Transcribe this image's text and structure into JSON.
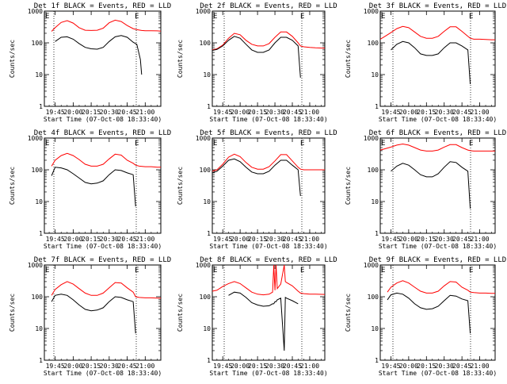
{
  "figure": {
    "start_label": "Start Time (07-Oct-08 18:33:40)",
    "ylabel": "Counts/sec",
    "x_ticks": [
      "19:45",
      "20:00",
      "20:15",
      "20:30",
      "20:45",
      "21:00"
    ],
    "y_ticks": [
      "1",
      "10",
      "100",
      "1000"
    ],
    "marker_left": "E",
    "marker_right": "E",
    "colors": {
      "events": "#000000",
      "lld": "#ff0000",
      "axes": "#000000",
      "background": "#ffffff"
    }
  },
  "chart_data": [
    {
      "type": "line",
      "title": "Det 1f BLACK = Events, RED = LLD",
      "xlim": [
        "19:36",
        "21:13"
      ],
      "ylim": [
        1,
        1000
      ],
      "yscale": "log",
      "x": [
        "19:42",
        "19:45",
        "19:50",
        "19:55",
        "20:00",
        "20:05",
        "20:10",
        "20:15",
        "20:20",
        "20:25",
        "20:30",
        "20:35",
        "20:40",
        "20:45",
        "20:50",
        "20:53",
        "20:56",
        "20:57",
        "21:00",
        "21:05",
        "21:10",
        "21:13"
      ],
      "series": [
        {
          "name": "Events",
          "values": [
            null,
            110,
            150,
            155,
            130,
            95,
            72,
            65,
            63,
            72,
            110,
            155,
            170,
            150,
            105,
            90,
            30,
            10,
            null,
            null,
            null,
            null
          ]
        },
        {
          "name": "LLD",
          "values": [
            230,
            300,
            440,
            500,
            420,
            300,
            250,
            245,
            250,
            290,
            430,
            520,
            470,
            350,
            280,
            260,
            250,
            245,
            240,
            240,
            238,
            235
          ]
        }
      ]
    },
    {
      "type": "line",
      "title": "Det 2f BLACK = Events, RED = LLD",
      "xlim": [
        "19:36",
        "21:13"
      ],
      "ylim": [
        1,
        1000
      ],
      "yscale": "log",
      "x": [
        "19:36",
        "19:40",
        "19:45",
        "19:50",
        "19:55",
        "20:00",
        "20:05",
        "20:10",
        "20:15",
        "20:20",
        "20:25",
        "20:30",
        "20:35",
        "20:40",
        "20:45",
        "20:50",
        "20:52",
        "20:55",
        "21:00",
        "21:05",
        "21:13"
      ],
      "series": [
        {
          "name": "Events",
          "values": [
            58,
            62,
            80,
            120,
            160,
            140,
            90,
            60,
            50,
            50,
            60,
            100,
            150,
            150,
            120,
            80,
            8,
            null,
            null,
            null,
            null
          ]
        },
        {
          "name": "LLD",
          "values": [
            60,
            65,
            85,
            140,
            200,
            180,
            120,
            90,
            80,
            80,
            95,
            150,
            220,
            220,
            160,
            100,
            80,
            75,
            72,
            70,
            68
          ]
        }
      ]
    },
    {
      "type": "line",
      "title": "Det 3f BLACK = Events, RED = LLD",
      "xlim": [
        "19:36",
        "21:13"
      ],
      "ylim": [
        1,
        1000
      ],
      "yscale": "log",
      "x": [
        "19:36",
        "19:40",
        "19:45",
        "19:50",
        "19:55",
        "20:00",
        "20:05",
        "20:10",
        "20:15",
        "20:20",
        "20:25",
        "20:30",
        "20:35",
        "20:40",
        "20:45",
        "20:50",
        "20:52",
        "20:55",
        "21:00",
        "21:05",
        "21:10",
        "21:13"
      ],
      "series": [
        {
          "name": "Events",
          "values": [
            null,
            null,
            60,
            90,
            110,
            100,
            70,
            45,
            40,
            40,
            45,
            70,
            100,
            100,
            80,
            60,
            5,
            null,
            null,
            null,
            null,
            null
          ]
        },
        {
          "name": "LLD",
          "values": [
            130,
            160,
            210,
            280,
            330,
            300,
            220,
            160,
            140,
            140,
            160,
            230,
            320,
            320,
            230,
            160,
            140,
            130,
            130,
            128,
            125,
            125
          ]
        }
      ]
    },
    {
      "type": "line",
      "title": "Det 4f BLACK = Events, RED = LLD",
      "xlim": [
        "19:36",
        "21:13"
      ],
      "ylim": [
        1,
        1000
      ],
      "yscale": "log",
      "x": [
        "19:42",
        "19:45",
        "19:50",
        "19:55",
        "20:00",
        "20:05",
        "20:10",
        "20:15",
        "20:20",
        "20:25",
        "20:30",
        "20:35",
        "20:40",
        "20:45",
        "20:50",
        "20:52",
        "20:55",
        "21:00",
        "21:05",
        "21:10",
        "21:13"
      ],
      "series": [
        {
          "name": "Events",
          "values": [
            65,
            120,
            115,
            100,
            75,
            55,
            40,
            36,
            38,
            45,
            70,
            100,
            95,
            80,
            70,
            7,
            null,
            null,
            null,
            null,
            null
          ]
        },
        {
          "name": "LLD",
          "values": [
            130,
            200,
            280,
            330,
            280,
            210,
            150,
            130,
            130,
            150,
            220,
            310,
            290,
            200,
            160,
            140,
            130,
            125,
            125,
            120,
            120
          ]
        }
      ]
    },
    {
      "type": "line",
      "title": "Det 5f BLACK = Events, RED = LLD",
      "xlim": [
        "19:36",
        "21:13"
      ],
      "ylim": [
        1,
        1000
      ],
      "yscale": "log",
      "x": [
        "19:36",
        "19:40",
        "19:45",
        "19:50",
        "19:55",
        "20:00",
        "20:05",
        "20:10",
        "20:15",
        "20:20",
        "20:25",
        "20:30",
        "20:35",
        "20:40",
        "20:45",
        "20:50",
        "20:52",
        "20:55",
        "21:00",
        "21:05",
        "21:13"
      ],
      "series": [
        {
          "name": "Events",
          "values": [
            80,
            90,
            130,
            200,
            220,
            180,
            120,
            85,
            75,
            75,
            90,
            140,
            200,
            200,
            140,
            100,
            15,
            null,
            null,
            null,
            null
          ]
        },
        {
          "name": "LLD",
          "values": [
            90,
            100,
            150,
            250,
            310,
            260,
            170,
            120,
            105,
            105,
            125,
            190,
            300,
            300,
            190,
            120,
            105,
            100,
            100,
            100,
            100
          ]
        }
      ]
    },
    {
      "type": "line",
      "title": "Det 6f BLACK = Events, RED = LLD",
      "xlim": [
        "19:36",
        "21:13"
      ],
      "ylim": [
        1,
        1000
      ],
      "yscale": "log",
      "x": [
        "19:36",
        "19:40",
        "19:45",
        "19:50",
        "19:55",
        "20:00",
        "20:05",
        "20:10",
        "20:15",
        "20:20",
        "20:25",
        "20:30",
        "20:35",
        "20:40",
        "20:45",
        "20:50",
        "20:52",
        "20:55",
        "21:00",
        "21:05",
        "21:10",
        "21:13"
      ],
      "series": [
        {
          "name": "Events",
          "values": [
            null,
            null,
            90,
            130,
            160,
            140,
            100,
            70,
            60,
            60,
            75,
            120,
            180,
            170,
            120,
            90,
            6,
            null,
            null,
            null,
            null,
            null
          ]
        },
        {
          "name": "LLD",
          "values": [
            420,
            460,
            520,
            600,
            650,
            600,
            500,
            420,
            390,
            390,
            420,
            520,
            620,
            620,
            500,
            420,
            400,
            390,
            390,
            390,
            390,
            390
          ]
        }
      ]
    },
    {
      "type": "line",
      "title": "Det 7f BLACK = Events, RED = LLD",
      "xlim": [
        "19:36",
        "21:13"
      ],
      "ylim": [
        1,
        1000
      ],
      "yscale": "log",
      "x": [
        "19:42",
        "19:45",
        "19:50",
        "19:55",
        "20:00",
        "20:05",
        "20:10",
        "20:15",
        "20:20",
        "20:25",
        "20:30",
        "20:35",
        "20:40",
        "20:45",
        "20:50",
        "20:52",
        "20:55",
        "21:00",
        "21:05",
        "21:10",
        "21:13"
      ],
      "series": [
        {
          "name": "Events",
          "values": [
            70,
            110,
            120,
            110,
            80,
            55,
            40,
            36,
            38,
            45,
            70,
            100,
            95,
            80,
            70,
            7,
            null,
            null,
            null,
            null,
            null
          ]
        },
        {
          "name": "LLD",
          "values": [
            110,
            170,
            240,
            300,
            250,
            180,
            130,
            110,
            110,
            130,
            190,
            280,
            270,
            190,
            140,
            100,
            95,
            92,
            92,
            90,
            90
          ]
        }
      ]
    },
    {
      "type": "line",
      "title": "Det 8f BLACK = Events, RED = LLD",
      "xlim": [
        "19:36",
        "21:13"
      ],
      "ylim": [
        1,
        1000
      ],
      "yscale": "log",
      "x": [
        "19:36",
        "19:40",
        "19:45",
        "19:50",
        "19:55",
        "20:00",
        "20:05",
        "20:10",
        "20:15",
        "20:20",
        "20:25",
        "20:28",
        "20:29",
        "20:30",
        "20:31",
        "20:32",
        "20:35",
        "20:38",
        "20:39",
        "20:40",
        "20:45",
        "20:50",
        "20:52",
        "20:55",
        "21:00",
        "21:05",
        "21:13"
      ],
      "series": [
        {
          "name": "Events",
          "values": [
            null,
            null,
            null,
            110,
            140,
            130,
            95,
            65,
            55,
            50,
            52,
            60,
            60,
            70,
            70,
            80,
            90,
            2,
            95,
            90,
            75,
            60,
            null,
            null,
            null,
            null,
            null
          ]
        },
        {
          "name": "LLD",
          "values": [
            150,
            160,
            210,
            260,
            300,
            260,
            190,
            140,
            120,
            115,
            120,
            140,
            1000,
            160,
            1000,
            180,
            250,
            1000,
            300,
            280,
            220,
            150,
            130,
            125,
            120,
            120,
            118
          ]
        }
      ]
    },
    {
      "type": "line",
      "title": "Det 9f BLACK = Events, RED = LLD",
      "xlim": [
        "19:36",
        "21:13"
      ],
      "ylim": [
        1,
        1000
      ],
      "yscale": "log",
      "x": [
        "19:42",
        "19:45",
        "19:50",
        "19:55",
        "20:00",
        "20:05",
        "20:10",
        "20:15",
        "20:20",
        "20:25",
        "20:30",
        "20:35",
        "20:40",
        "20:45",
        "20:50",
        "20:52",
        "20:55",
        "21:00",
        "21:05",
        "21:10",
        "21:13"
      ],
      "series": [
        {
          "name": "Events",
          "values": [
            80,
            115,
            130,
            120,
            90,
            60,
            45,
            40,
            42,
            50,
            75,
            110,
            105,
            85,
            75,
            7,
            null,
            null,
            null,
            null,
            null
          ]
        },
        {
          "name": "LLD",
          "values": [
            140,
            200,
            270,
            320,
            270,
            200,
            150,
            130,
            130,
            150,
            220,
            300,
            290,
            200,
            160,
            140,
            135,
            130,
            130,
            128,
            128
          ]
        }
      ]
    }
  ]
}
